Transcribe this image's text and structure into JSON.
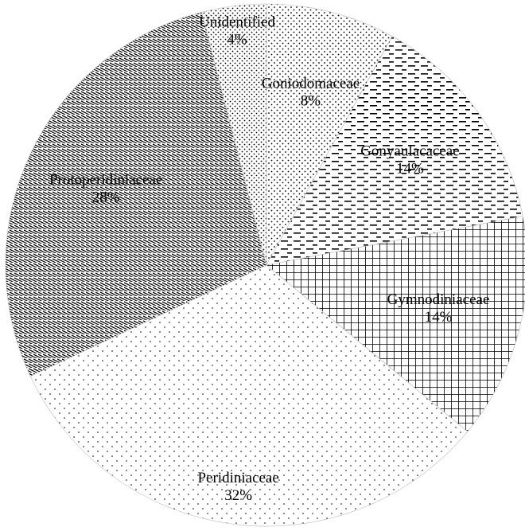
{
  "chart_data": {
    "type": "pie",
    "categories": [
      "Goniodomaceae",
      "Gonyaulacaceae",
      "Gymnodiniaceae",
      "Peridiniaceae",
      "Protoperidiniaceae",
      "Unidentified"
    ],
    "values": [
      8,
      14,
      14,
      32,
      28,
      4
    ],
    "value_labels": [
      "8%",
      "14%",
      "14%",
      "32%",
      "28%",
      "4%"
    ]
  }
}
